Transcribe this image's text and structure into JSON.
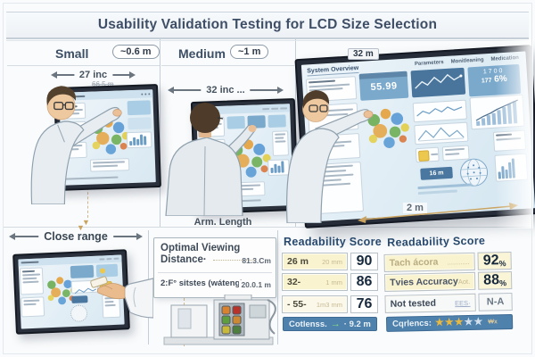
{
  "title": "Usability Validation Testing for LCD Size Selection",
  "panels": {
    "small": {
      "label": "Small",
      "distance_badge": "~0.6 m",
      "diagonal_label": "27 inc",
      "diagonal_sub": "66.5 m"
    },
    "medium": {
      "label": "Medium",
      "distance_badge": "~1 m",
      "diagonal_label": "32 inc ..."
    },
    "large": {
      "size_label": "32 m",
      "distance_label": "2 m",
      "screen": {
        "title": "System Overview",
        "tabs": [
          "Parameters",
          "Monitleaning",
          "Medication"
        ],
        "kpi_value": "55.99",
        "kpi_secondary": "1700",
        "kpi_tertiary": "177",
        "kpi_percent": "6%",
        "button_label": "16 m"
      }
    }
  },
  "bottom": {
    "close_range": {
      "label": "Close range"
    },
    "arm_length_label": "Arm. Length",
    "viewing_box": {
      "title_line1": "Optimal Viewing",
      "title_line2": "Distance·",
      "value1": "81.3.Cm",
      "row2_label": "2:F° sitstes (wáteng)",
      "value2": "20.0.1 m"
    },
    "score_table_1": {
      "header": "Readability Score",
      "rows": [
        {
          "label": "26 m",
          "sub": "20 mm",
          "score": "90"
        },
        {
          "label": "32-",
          "sub": "1 mm",
          "score": "86"
        },
        {
          "label": "- 55-",
          "sub": "1m3 mm",
          "score": "76"
        }
      ],
      "footer_label": "Cotlenss.",
      "footer_value": "· 9.2 m"
    },
    "score_table_2": {
      "header": "Readability Score",
      "rows": [
        {
          "label": "Tach ácora",
          "sub": "............",
          "score": "92",
          "unit": "%"
        },
        {
          "label": "Tvies Accuracy",
          "sub": "Aot..caor",
          "score": "88",
          "unit": "%"
        },
        {
          "label": "Not tested",
          "sub": "EES·",
          "score": "N-A",
          "unit": ""
        }
      ],
      "footer_label": "Cqrlencs:",
      "stars_filled": 3,
      "stars_total": 5,
      "stars_suffix": "₩x"
    }
  },
  "icons": {
    "down_arrow": "▼",
    "green_arrow": "→",
    "star": "★"
  },
  "colors": {
    "accent_gold": "#c9a35f",
    "footer_blue": "#4f81ad",
    "star_gold": "#e8b840",
    "bubble_green": "#6fae57",
    "bubble_orange": "#e5a23e",
    "bubble_blue": "#5b9bd5",
    "bubble_yellow": "#e3cf4e"
  }
}
